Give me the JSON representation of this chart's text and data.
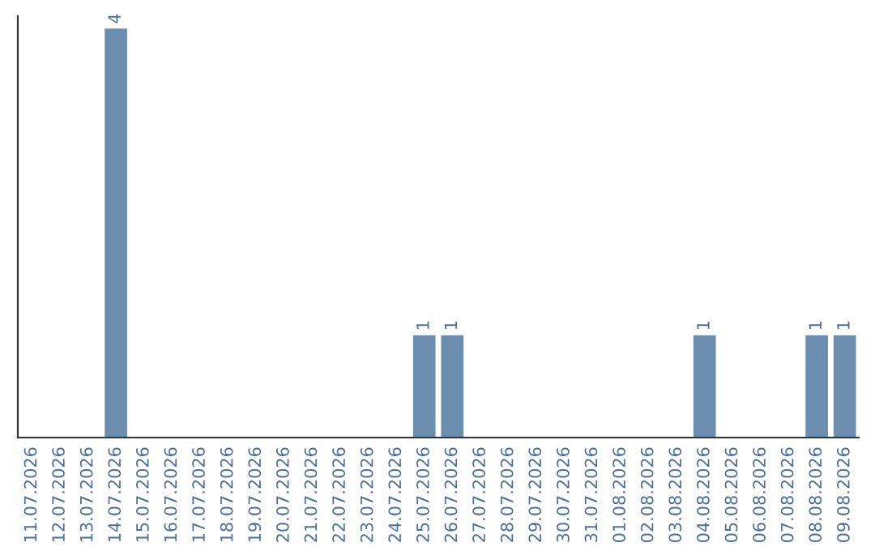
{
  "chart_data": {
    "type": "bar",
    "categories": [
      "11.07.2026",
      "12.07.2026",
      "13.07.2026",
      "14.07.2026",
      "15.07.2026",
      "16.07.2026",
      "17.07.2026",
      "18.07.2026",
      "19.07.2026",
      "20.07.2026",
      "21.07.2026",
      "22.07.2026",
      "23.07.2026",
      "24.07.2026",
      "25.07.2026",
      "26.07.2026",
      "27.07.2026",
      "28.07.2026",
      "29.07.2026",
      "30.07.2026",
      "31.07.2026",
      "01.08.2026",
      "02.08.2026",
      "03.08.2026",
      "04.08.2026",
      "05.08.2026",
      "06.08.2026",
      "07.08.2026",
      "08.08.2026",
      "09.08.2026"
    ],
    "values": [
      0,
      0,
      0,
      4,
      0,
      0,
      0,
      0,
      0,
      0,
      0,
      0,
      0,
      0,
      1,
      1,
      0,
      0,
      0,
      0,
      0,
      0,
      0,
      0,
      1,
      0,
      0,
      0,
      1,
      1
    ],
    "value_labels": [
      null,
      null,
      null,
      "4",
      null,
      null,
      null,
      null,
      null,
      null,
      null,
      null,
      null,
      null,
      "1",
      "1",
      null,
      null,
      null,
      null,
      null,
      null,
      null,
      null,
      "1",
      null,
      null,
      null,
      "1",
      "1"
    ],
    "color": "#6c8eae",
    "grid": false,
    "legend": false
  }
}
